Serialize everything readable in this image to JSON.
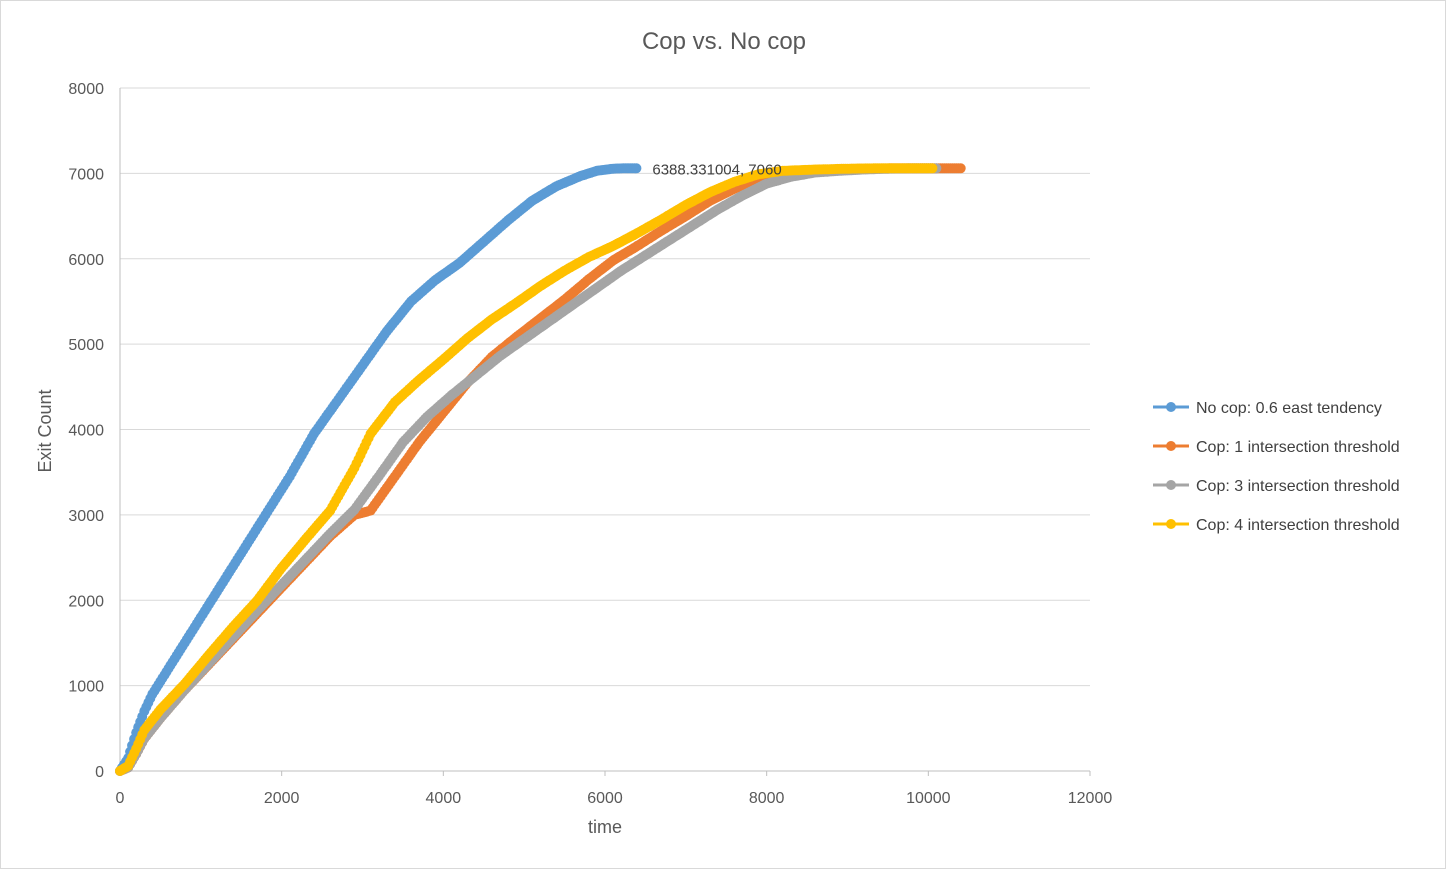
{
  "chart_data": {
    "type": "scatter",
    "title": "Cop vs.  No cop",
    "xlabel": "time",
    "ylabel": "Exit Count",
    "xlim": [
      0,
      12000
    ],
    "ylim": [
      0,
      8000
    ],
    "x_ticks": [
      "0",
      "2000",
      "4000",
      "6000",
      "8000",
      "10000",
      "12000"
    ],
    "y_ticks": [
      "0",
      "1000",
      "2000",
      "3000",
      "4000",
      "5000",
      "6000",
      "7000",
      "8000"
    ],
    "grid": "horizontal",
    "legend_position": "right",
    "annotation": {
      "text": "6388.331004, 7060",
      "x": 6388.331004,
      "y": 7060
    },
    "series": [
      {
        "name": "No cop: 0.6 east tendency",
        "color": "#5B9BD5",
        "x": [
          0,
          100,
          200,
          300,
          400,
          600,
          800,
          1000,
          1200,
          1500,
          1800,
          2100,
          2400,
          2700,
          3000,
          3300,
          3600,
          3900,
          4200,
          4500,
          4800,
          5100,
          5400,
          5700,
          5900,
          6100,
          6250,
          6388
        ],
        "y": [
          0,
          150,
          450,
          700,
          900,
          1200,
          1500,
          1800,
          2100,
          2550,
          3000,
          3450,
          3950,
          4350,
          4750,
          5150,
          5500,
          5750,
          5950,
          6200,
          6450,
          6680,
          6850,
          6970,
          7030,
          7055,
          7060,
          7060
        ]
      },
      {
        "name": "Cop: 1 intersection threshold",
        "color": "#ED7D31",
        "x": [
          0,
          100,
          200,
          300,
          500,
          800,
          1100,
          1400,
          1700,
          2000,
          2300,
          2600,
          2900,
          3100,
          3400,
          3700,
          4000,
          4300,
          4600,
          4900,
          5200,
          5500,
          5800,
          6100,
          6400,
          6700,
          7000,
          7300,
          7600,
          7900,
          8200,
          8500,
          8800,
          9200,
          9600,
          10000,
          10400
        ],
        "y": [
          0,
          40,
          200,
          380,
          620,
          950,
          1250,
          1550,
          1850,
          2150,
          2450,
          2750,
          3000,
          3050,
          3450,
          3850,
          4200,
          4550,
          4850,
          5080,
          5300,
          5520,
          5760,
          5980,
          6150,
          6330,
          6500,
          6680,
          6820,
          6920,
          6980,
          7020,
          7040,
          7055,
          7060,
          7060,
          7060
        ]
      },
      {
        "name": "Cop: 3 intersection threshold",
        "color": "#A5A5A5",
        "x": [
          0,
          100,
          200,
          300,
          500,
          800,
          1100,
          1400,
          1700,
          2000,
          2300,
          2600,
          2900,
          3200,
          3500,
          3800,
          4100,
          4400,
          4700,
          5000,
          5300,
          5600,
          5900,
          6200,
          6500,
          6800,
          7100,
          7400,
          7700,
          8000,
          8300,
          8600,
          8900,
          9200,
          9500,
          9800,
          10100
        ],
        "y": [
          0,
          40,
          200,
          380,
          620,
          950,
          1260,
          1570,
          1880,
          2180,
          2480,
          2780,
          3060,
          3450,
          3850,
          4150,
          4400,
          4630,
          4860,
          5060,
          5260,
          5460,
          5660,
          5860,
          6040,
          6220,
          6400,
          6580,
          6740,
          6880,
          6960,
          7010,
          7030,
          7045,
          7055,
          7060,
          7060
        ]
      },
      {
        "name": "Cop: 4 intersection threshold",
        "color": "#FFC000",
        "x": [
          0,
          100,
          200,
          300,
          500,
          800,
          1100,
          1400,
          1700,
          2000,
          2300,
          2600,
          2900,
          3100,
          3400,
          3700,
          4000,
          4300,
          4600,
          4900,
          5200,
          5500,
          5800,
          6100,
          6400,
          6700,
          7000,
          7300,
          7600,
          7900,
          8200,
          8600,
          9000,
          9400,
          9800,
          10050
        ],
        "y": [
          0,
          60,
          260,
          480,
          720,
          1020,
          1360,
          1690,
          2000,
          2380,
          2720,
          3050,
          3550,
          3950,
          4320,
          4580,
          4820,
          5070,
          5290,
          5480,
          5680,
          5860,
          6020,
          6150,
          6300,
          6460,
          6630,
          6780,
          6900,
          6990,
          7030,
          7045,
          7055,
          7060,
          7060,
          7060
        ]
      }
    ]
  }
}
